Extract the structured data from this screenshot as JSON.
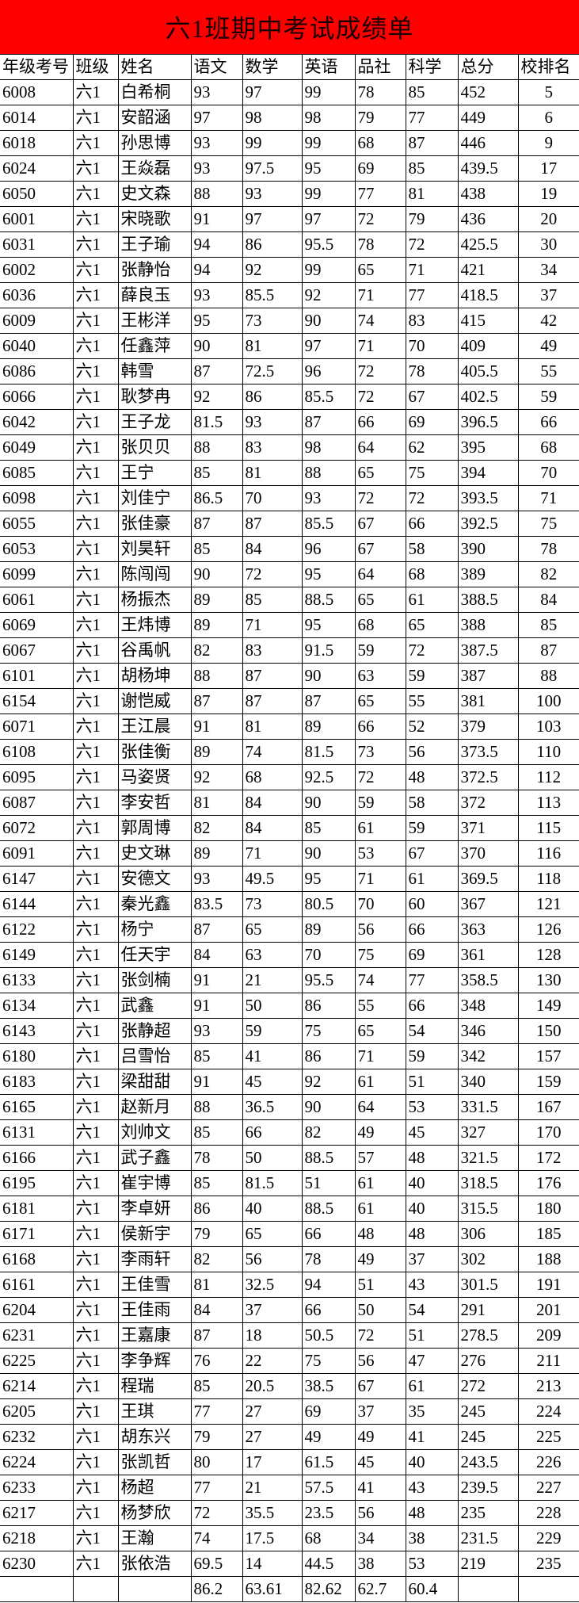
{
  "title": "六1班期中考试成绩单",
  "columns": [
    "年级考号",
    "班级",
    "姓名",
    "语文",
    "数学",
    "英语",
    "品社",
    "科学",
    "总分",
    "校排名"
  ],
  "rows": [
    [
      "6008",
      "六1",
      "白希桐",
      "93",
      "97",
      "99",
      "78",
      "85",
      "452",
      "5"
    ],
    [
      "6014",
      "六1",
      "安韶涵",
      "97",
      "98",
      "98",
      "79",
      "77",
      "449",
      "6"
    ],
    [
      "6018",
      "六1",
      "孙思博",
      "93",
      "99",
      "99",
      "68",
      "87",
      "446",
      "9"
    ],
    [
      "6024",
      "六1",
      "王焱磊",
      "93",
      "97.5",
      "95",
      "69",
      "85",
      "439.5",
      "17"
    ],
    [
      "6050",
      "六1",
      "史文森",
      "88",
      "93",
      "99",
      "77",
      "81",
      "438",
      "19"
    ],
    [
      "6001",
      "六1",
      "宋晓歌",
      "91",
      "97",
      "97",
      "72",
      "79",
      "436",
      "20"
    ],
    [
      "6031",
      "六1",
      "王子瑜",
      "94",
      "86",
      "95.5",
      "78",
      "72",
      "425.5",
      "30"
    ],
    [
      "6002",
      "六1",
      "张静怡",
      "94",
      "92",
      "99",
      "65",
      "71",
      "421",
      "34"
    ],
    [
      "6036",
      "六1",
      "薛良玉",
      "93",
      "85.5",
      "92",
      "71",
      "77",
      "418.5",
      "37"
    ],
    [
      "6009",
      "六1",
      "王彬洋",
      "95",
      "73",
      "90",
      "74",
      "83",
      "415",
      "42"
    ],
    [
      "6040",
      "六1",
      "任鑫萍",
      "90",
      "81",
      "97",
      "71",
      "70",
      "409",
      "49"
    ],
    [
      "6086",
      "六1",
      "韩雪",
      "87",
      "72.5",
      "96",
      "72",
      "78",
      "405.5",
      "55"
    ],
    [
      "6066",
      "六1",
      "耿梦冉",
      "92",
      "86",
      "85.5",
      "72",
      "67",
      "402.5",
      "59"
    ],
    [
      "6042",
      "六1",
      "王子龙",
      "81.5",
      "93",
      "87",
      "66",
      "69",
      "396.5",
      "66"
    ],
    [
      "6049",
      "六1",
      "张贝贝",
      "88",
      "83",
      "98",
      "64",
      "62",
      "395",
      "68"
    ],
    [
      "6085",
      "六1",
      "王宁",
      "85",
      "81",
      "88",
      "65",
      "75",
      "394",
      "70"
    ],
    [
      "6098",
      "六1",
      "刘佳宁",
      "86.5",
      "70",
      "93",
      "72",
      "72",
      "393.5",
      "71"
    ],
    [
      "6055",
      "六1",
      "张佳豪",
      "87",
      "87",
      "85.5",
      "67",
      "66",
      "392.5",
      "75"
    ],
    [
      "6053",
      "六1",
      "刘昊轩",
      "85",
      "84",
      "96",
      "67",
      "58",
      "390",
      "78"
    ],
    [
      "6099",
      "六1",
      "陈闯闯",
      "90",
      "72",
      "95",
      "64",
      "68",
      "389",
      "82"
    ],
    [
      "6061",
      "六1",
      "杨振杰",
      "89",
      "85",
      "88.5",
      "65",
      "61",
      "388.5",
      "84"
    ],
    [
      "6069",
      "六1",
      "王炜博",
      "89",
      "71",
      "95",
      "68",
      "65",
      "388",
      "85"
    ],
    [
      "6067",
      "六1",
      "谷禹帆",
      "82",
      "83",
      "91.5",
      "59",
      "72",
      "387.5",
      "87"
    ],
    [
      "6101",
      "六1",
      "胡杨坤",
      "88",
      "87",
      "90",
      "63",
      "59",
      "387",
      "88"
    ],
    [
      "6154",
      "六1",
      "谢恺威",
      "87",
      "87",
      "87",
      "65",
      "55",
      "381",
      "100"
    ],
    [
      "6071",
      "六1",
      "王江晨",
      "91",
      "81",
      "89",
      "66",
      "52",
      "379",
      "103"
    ],
    [
      "6108",
      "六1",
      "张佳衡",
      "89",
      "74",
      "81.5",
      "73",
      "56",
      "373.5",
      "110"
    ],
    [
      "6095",
      "六1",
      "马姿贤",
      "92",
      "68",
      "92.5",
      "72",
      "48",
      "372.5",
      "112"
    ],
    [
      "6087",
      "六1",
      "李安哲",
      "81",
      "84",
      "90",
      "59",
      "58",
      "372",
      "113"
    ],
    [
      "6072",
      "六1",
      "郭周博",
      "82",
      "84",
      "85",
      "61",
      "59",
      "371",
      "115"
    ],
    [
      "6091",
      "六1",
      "史文琳",
      "89",
      "71",
      "90",
      "53",
      "67",
      "370",
      "116"
    ],
    [
      "6147",
      "六1",
      "安德文",
      "93",
      "49.5",
      "95",
      "71",
      "61",
      "369.5",
      "118"
    ],
    [
      "6144",
      "六1",
      "秦光鑫",
      "83.5",
      "73",
      "80.5",
      "70",
      "60",
      "367",
      "121"
    ],
    [
      "6122",
      "六1",
      "杨宁",
      "87",
      "65",
      "89",
      "56",
      "66",
      "363",
      "126"
    ],
    [
      "6149",
      "六1",
      "任天宇",
      "84",
      "63",
      "70",
      "75",
      "69",
      "361",
      "128"
    ],
    [
      "6133",
      "六1",
      "张剑楠",
      "91",
      "21",
      "95.5",
      "74",
      "77",
      "358.5",
      "130"
    ],
    [
      "6134",
      "六1",
      "武鑫",
      "91",
      "50",
      "86",
      "55",
      "66",
      "348",
      "149"
    ],
    [
      "6143",
      "六1",
      "张静超",
      "93",
      "59",
      "75",
      "65",
      "54",
      "346",
      "150"
    ],
    [
      "6180",
      "六1",
      "吕雪怡",
      "85",
      "41",
      "86",
      "71",
      "59",
      "342",
      "157"
    ],
    [
      "6183",
      "六1",
      "梁甜甜",
      "91",
      "45",
      "92",
      "61",
      "51",
      "340",
      "159"
    ],
    [
      "6165",
      "六1",
      "赵新月",
      "88",
      "36.5",
      "90",
      "64",
      "53",
      "331.5",
      "167"
    ],
    [
      "6131",
      "六1",
      "刘帅文",
      "85",
      "66",
      "82",
      "49",
      "45",
      "327",
      "170"
    ],
    [
      "6166",
      "六1",
      "武子鑫",
      "78",
      "50",
      "88.5",
      "57",
      "48",
      "321.5",
      "172"
    ],
    [
      "6195",
      "六1",
      "崔宇博",
      "85",
      "81.5",
      "51",
      "61",
      "40",
      "318.5",
      "176"
    ],
    [
      "6181",
      "六1",
      "李卓妍",
      "86",
      "40",
      "88.5",
      "61",
      "40",
      "315.5",
      "180"
    ],
    [
      "6171",
      "六1",
      "侯新宇",
      "79",
      "65",
      "66",
      "48",
      "48",
      "306",
      "185"
    ],
    [
      "6168",
      "六1",
      "李雨轩",
      "82",
      "56",
      "78",
      "49",
      "37",
      "302",
      "188"
    ],
    [
      "6161",
      "六1",
      "王佳雪",
      "81",
      "32.5",
      "94",
      "51",
      "43",
      "301.5",
      "191"
    ],
    [
      "6204",
      "六1",
      "王佳雨",
      "84",
      "37",
      "66",
      "50",
      "54",
      "291",
      "201"
    ],
    [
      "6231",
      "六1",
      "王嘉康",
      "87",
      "18",
      "50.5",
      "72",
      "51",
      "278.5",
      "209"
    ],
    [
      "6225",
      "六1",
      "李争辉",
      "76",
      "22",
      "75",
      "56",
      "47",
      "276",
      "211"
    ],
    [
      "6214",
      "六1",
      "程瑞",
      "85",
      "20.5",
      "38.5",
      "67",
      "61",
      "272",
      "213"
    ],
    [
      "6205",
      "六1",
      "王琪",
      "77",
      "27",
      "69",
      "37",
      "35",
      "245",
      "224"
    ],
    [
      "6232",
      "六1",
      "胡东兴",
      "79",
      "27",
      "49",
      "49",
      "41",
      "245",
      "225"
    ],
    [
      "6224",
      "六1",
      "张凯哲",
      "80",
      "17",
      "61.5",
      "45",
      "40",
      "243.5",
      "226"
    ],
    [
      "6233",
      "六1",
      "杨超",
      "77",
      "21",
      "57.5",
      "41",
      "43",
      "239.5",
      "227"
    ],
    [
      "6217",
      "六1",
      "杨梦欣",
      "72",
      "35.5",
      "23.5",
      "56",
      "48",
      "235",
      "228"
    ],
    [
      "6218",
      "六1",
      "王瀚",
      "74",
      "17.5",
      "68",
      "34",
      "38",
      "231.5",
      "229"
    ],
    [
      "6230",
      "六1",
      "张依浩",
      "69.5",
      "14",
      "44.5",
      "38",
      "53",
      "219",
      "235"
    ]
  ],
  "averages": [
    "",
    "",
    "",
    "86.2",
    "63.61",
    "82.62",
    "62.7",
    "60.4",
    "",
    ""
  ],
  "colors": {
    "title_bg": "#ff0000"
  }
}
